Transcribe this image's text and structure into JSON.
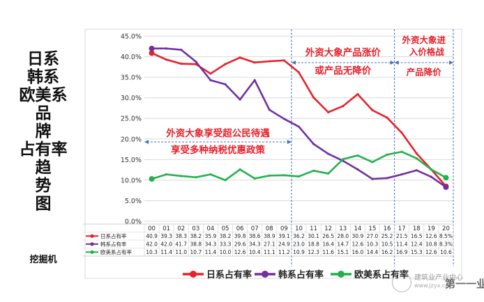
{
  "side_title_chars": [
    "日系",
    "韩系",
    "欧美系",
    "品",
    "牌",
    "占有率",
    "趋",
    "势",
    "图"
  ],
  "side_subtitle": "挖掘机",
  "watermark": {
    "line1": "建筑业产业中心",
    "line2": "www.jzyx.cn",
    "line3": "第一一业"
  },
  "chart_data": {
    "type": "line",
    "categories": [
      "00",
      "01",
      "02",
      "03",
      "04",
      "05",
      "06",
      "07",
      "08",
      "09",
      "10",
      "11",
      "12",
      "13",
      "14",
      "15",
      "16",
      "17",
      "18",
      "19",
      "20"
    ],
    "ylim": [
      0,
      45
    ],
    "yticks": [
      0,
      5,
      10,
      15,
      20,
      25,
      30,
      35,
      40,
      45
    ],
    "ytick_labels": [
      "0.0%",
      "5.0%",
      "10.0%",
      "15.0%",
      "20.0%",
      "25.0%",
      "30.0%",
      "35.0%",
      "40.0%",
      "45.0%"
    ],
    "grid": true,
    "series": [
      {
        "name": "日系占有率",
        "color": "#e8202a",
        "values": [
          40.9,
          39.3,
          38.3,
          38.2,
          35.9,
          38.2,
          39.8,
          38.6,
          38.9,
          39.1,
          36.2,
          30.1,
          26.5,
          28.0,
          30.9,
          27.0,
          25.2,
          21.5,
          16.5,
          12.6,
          8.5
        ],
        "labels": [
          "40.9",
          "39.3",
          "38.3",
          "38.2",
          "35.9",
          "38.2",
          "39.8",
          "38.6",
          "38.9",
          "39.1",
          "36.2",
          "30.1",
          "26.5",
          "28.0",
          "30.9",
          "27.0",
          "25.2",
          "21.5",
          "16.5",
          "12.6",
          "8.5%"
        ]
      },
      {
        "name": "韩系占有率",
        "color": "#7030a0",
        "values": [
          42.0,
          42.0,
          41.7,
          38.8,
          34.3,
          33.3,
          29.6,
          34.3,
          27.1,
          24.9,
          23.0,
          18.8,
          16.4,
          14.7,
          12.6,
          10.3,
          10.5,
          11.4,
          12.4,
          10.8,
          8.3
        ],
        "labels": [
          "42.0",
          "42.0",
          "41.7",
          "38.8",
          "34.3",
          "33.3",
          "29.6",
          "34.3",
          "27.1",
          "24.9",
          "23.0",
          "18.8",
          "16.4",
          "14.7",
          "12.6",
          "10.3",
          "10.5",
          "11.4",
          "12.4",
          "10.8",
          "8.3%"
        ]
      },
      {
        "name": "欧美系占有率",
        "color": "#22b14c",
        "values": [
          10.3,
          11.4,
          11.0,
          10.7,
          11.4,
          10.0,
          12.6,
          10.4,
          11.1,
          11.2,
          10.9,
          12.3,
          11.6,
          15.1,
          16.0,
          14.4,
          16.2,
          16.9,
          15.3,
          12.6,
          10.6
        ],
        "labels": [
          "10.3",
          "11.4",
          "11.0",
          "10.7",
          "11.4",
          "10.0",
          "12.6",
          "10.4",
          "11.1",
          "11.2",
          "10.9",
          "12.3",
          "11.6",
          "15.1",
          "16.0",
          "14.4",
          "16.2",
          "16.9",
          "15.3",
          "12.6",
          "10.6"
        ]
      }
    ],
    "annotations": [
      {
        "lines": [
          "外资大象享受超公民待遇",
          "享受多种纳税优惠政策"
        ],
        "from": "00",
        "to": "10"
      },
      {
        "lines": [
          "外资大象产品涨价",
          "或产品无降价"
        ],
        "from": "10",
        "to": "17"
      },
      {
        "lines": [
          "外资大象进",
          "入价格战"
        ],
        "from": "17",
        "to": "20"
      },
      {
        "lines": [
          "产品降价"
        ],
        "from": "17",
        "to": "20"
      }
    ],
    "legend": [
      "日系占有率",
      "韩系占有率",
      "欧美系占有率"
    ],
    "legend_position": "bottom"
  }
}
